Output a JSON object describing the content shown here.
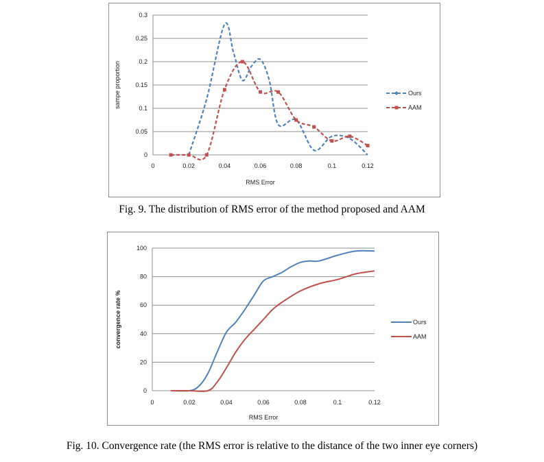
{
  "chart_data": [
    {
      "type": "line",
      "title": "",
      "xlabel": "RMS Error",
      "ylabel": "sampe proportion",
      "x_ticks": [
        "0",
        "0.02",
        "0.04",
        "0.06",
        "0.08",
        "0.1",
        "0.12"
      ],
      "y_ticks": [
        "0",
        "0.05",
        "0.1",
        "0.15",
        "0.2",
        "0.25",
        "0.3"
      ],
      "xlim": [
        0,
        0.12
      ],
      "ylim": [
        0,
        0.3
      ],
      "grid": "horizontal",
      "legend_position": "right",
      "series": [
        {
          "name": "Ours",
          "color": "#4f81bd",
          "style": "dashed-marker",
          "points": [
            [
              0.02,
              0
            ],
            [
              0.03,
              0.12
            ],
            [
              0.04,
              0.28
            ],
            [
              0.045,
              0.22
            ],
            [
              0.05,
              0.16
            ],
            [
              0.055,
              0.19
            ],
            [
              0.06,
              0.205
            ],
            [
              0.065,
              0.16
            ],
            [
              0.07,
              0.065
            ],
            [
              0.08,
              0.075
            ],
            [
              0.09,
              0.01
            ],
            [
              0.1,
              0.04
            ],
            [
              0.11,
              0.035
            ],
            [
              0.12,
              0
            ]
          ]
        },
        {
          "name": "AAM",
          "color": "#c0504d",
          "style": "dashed-marker",
          "points": [
            [
              0.01,
              0
            ],
            [
              0.02,
              0
            ],
            [
              0.03,
              0
            ],
            [
              0.04,
              0.14
            ],
            [
              0.05,
              0.2
            ],
            [
              0.06,
              0.135
            ],
            [
              0.07,
              0.135
            ],
            [
              0.08,
              0.075
            ],
            [
              0.09,
              0.06
            ],
            [
              0.1,
              0.03
            ],
            [
              0.11,
              0.04
            ],
            [
              0.12,
              0.02
            ]
          ]
        }
      ]
    },
    {
      "type": "line",
      "title": "",
      "xlabel": "RMS Error",
      "ylabel": "convergence rate %",
      "x_ticks": [
        "0",
        "0.02",
        "0.04",
        "0.06",
        "0.08",
        "0.1",
        "0.12"
      ],
      "y_ticks": [
        "0",
        "20",
        "40",
        "60",
        "80",
        "100"
      ],
      "xlim": [
        0,
        0.12
      ],
      "ylim": [
        0,
        100
      ],
      "grid": "horizontal",
      "legend_position": "right",
      "series": [
        {
          "name": "Ours",
          "color": "#4f81bd",
          "style": "solid",
          "points": [
            [
              0.01,
              0
            ],
            [
              0.02,
              0
            ],
            [
              0.025,
              3
            ],
            [
              0.03,
              12
            ],
            [
              0.035,
              27
            ],
            [
              0.04,
              41
            ],
            [
              0.045,
              48
            ],
            [
              0.05,
              57
            ],
            [
              0.055,
              67
            ],
            [
              0.06,
              77
            ],
            [
              0.065,
              80
            ],
            [
              0.07,
              83
            ],
            [
              0.075,
              87
            ],
            [
              0.08,
              90
            ],
            [
              0.085,
              91
            ],
            [
              0.09,
              91
            ],
            [
              0.1,
              95
            ],
            [
              0.11,
              98
            ],
            [
              0.12,
              98
            ]
          ]
        },
        {
          "name": "AAM",
          "color": "#c0504d",
          "style": "solid",
          "points": [
            [
              0.01,
              0
            ],
            [
              0.02,
              0
            ],
            [
              0.03,
              0
            ],
            [
              0.035,
              6
            ],
            [
              0.04,
              16
            ],
            [
              0.045,
              27
            ],
            [
              0.05,
              36
            ],
            [
              0.055,
              43
            ],
            [
              0.06,
              50
            ],
            [
              0.065,
              57
            ],
            [
              0.07,
              62
            ],
            [
              0.08,
              70
            ],
            [
              0.09,
              75
            ],
            [
              0.1,
              78
            ],
            [
              0.11,
              82
            ],
            [
              0.12,
              84
            ]
          ]
        }
      ]
    }
  ],
  "captions": {
    "fig9": "Fig. 9. The distribution of RMS error of the method  proposed and AAM",
    "fig10": "Fig. 10. Convergence rate (the RMS error is relative to the distance of the two inner eye corners)"
  }
}
